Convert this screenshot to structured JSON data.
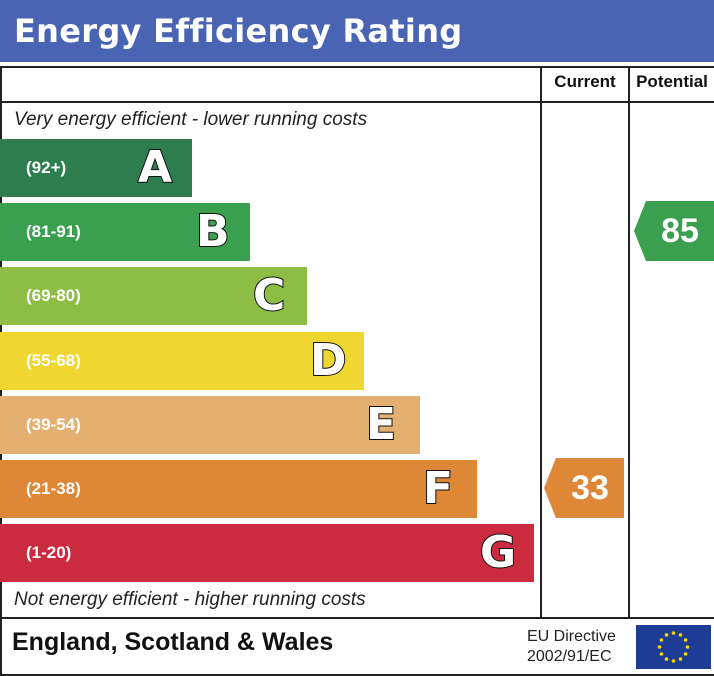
{
  "header": {
    "title": "Energy Efficiency Rating"
  },
  "columns": {
    "current": "Current",
    "potential": "Potential"
  },
  "captions": {
    "top": "Very energy efficient - lower running costs",
    "bottom": "Not energy efficient - higher running costs"
  },
  "footer": {
    "region": "England, Scotland & Wales",
    "directive_line1": "EU Directive",
    "directive_line2": "2002/91/EC"
  },
  "colors": {
    "header": "#4a64b4",
    "band_A": "#2e7d4f",
    "band_B": "#3aa04f",
    "band_C": "#8dbd45",
    "band_D": "#f0d630",
    "band_E": "#e4b071",
    "band_F": "#de8736",
    "band_G": "#cc2a3f"
  },
  "chart_data": {
    "type": "bar",
    "title": "Energy Efficiency Rating",
    "bands": [
      {
        "letter": "A",
        "range": "(92+)",
        "min": 92,
        "max": 100,
        "color": "#2e7d4f"
      },
      {
        "letter": "B",
        "range": "(81-91)",
        "min": 81,
        "max": 91,
        "color": "#3aa04f"
      },
      {
        "letter": "C",
        "range": "(69-80)",
        "min": 69,
        "max": 80,
        "color": "#8dbd45"
      },
      {
        "letter": "D",
        "range": "(55-68)",
        "min": 55,
        "max": 68,
        "color": "#f0d630"
      },
      {
        "letter": "E",
        "range": "(39-54)",
        "min": 39,
        "max": 54,
        "color": "#e4b071"
      },
      {
        "letter": "F",
        "range": "(21-38)",
        "min": 21,
        "max": 38,
        "color": "#de8736"
      },
      {
        "letter": "G",
        "range": "(1-20)",
        "min": 1,
        "max": 20,
        "color": "#cc2a3f"
      }
    ],
    "current": {
      "value": 33,
      "band": "F",
      "color": "#de8736"
    },
    "potential": {
      "value": 85,
      "band": "B",
      "color": "#3aa04f"
    }
  }
}
